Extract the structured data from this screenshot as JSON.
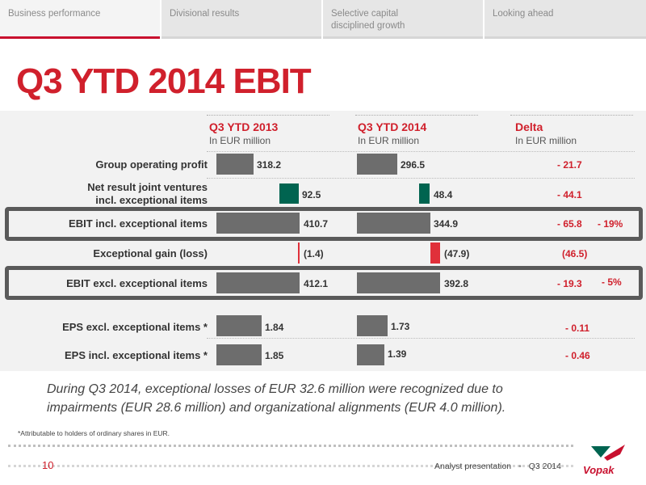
{
  "nav": {
    "tabs": [
      {
        "label": "Business performance"
      },
      {
        "label": "Divisional results"
      },
      {
        "label": "Selective capital disciplined growth"
      },
      {
        "label": "Looking ahead"
      }
    ]
  },
  "title": "Q3 YTD 2014 EBIT",
  "columns": {
    "c2013": {
      "title": "Q3 YTD 2013",
      "unit": "In EUR million"
    },
    "c2014": {
      "title": "Q3 YTD 2014",
      "unit": "In EUR million"
    },
    "delta": {
      "title": "Delta",
      "unit": "In EUR million"
    }
  },
  "rows": [
    {
      "label": "Group operating profit",
      "v2013": "318.2",
      "v2014": "296.5",
      "delta": "- 21.7",
      "pct": ""
    },
    {
      "label_line1": "Net result joint ventures",
      "label_line2": "incl. exceptional items",
      "v2013": "92.5",
      "v2014": "48.4",
      "delta": "- 44.1",
      "pct": ""
    },
    {
      "label": "EBIT incl. exceptional items",
      "v2013": "410.7",
      "v2014": "344.9",
      "delta": "- 65.8",
      "pct": "- 19%"
    },
    {
      "label": "Exceptional gain (loss)",
      "v2013": "(1.4)",
      "v2014": "(47.9)",
      "delta": "(46.5)",
      "pct": ""
    },
    {
      "label": "EBIT excl. exceptional items",
      "v2013": "412.1",
      "v2014": "392.8",
      "delta": "- 19.3",
      "pct": "- 5%"
    },
    {
      "label": "EPS excl. exceptional items *",
      "v2013": "1.84",
      "v2014": "1.73",
      "delta": "- 0.11",
      "pct": ""
    },
    {
      "label": "EPS incl. exceptional items *",
      "v2013": "1.85",
      "v2014": "1.39",
      "delta": "- 0.46",
      "pct": ""
    }
  ],
  "note_line1": "During Q3 2014, exceptional losses of EUR 32.6 million were recognized due to",
  "note_line2": "impairments (EUR 28.6 million) and organizational alignments (EUR 4.0 million).",
  "footnote": "*Attributable to holders of ordinary shares in EUR.",
  "footer": {
    "page": "10",
    "presentation": "Analyst presentation",
    "period": "Q3 2014",
    "logo_text": "Vopak"
  },
  "colors": {
    "accent_red": "#d0202c",
    "bar_grey": "#6d6d6d",
    "bar_green": "#006450",
    "bar_red": "#e0303a"
  }
}
